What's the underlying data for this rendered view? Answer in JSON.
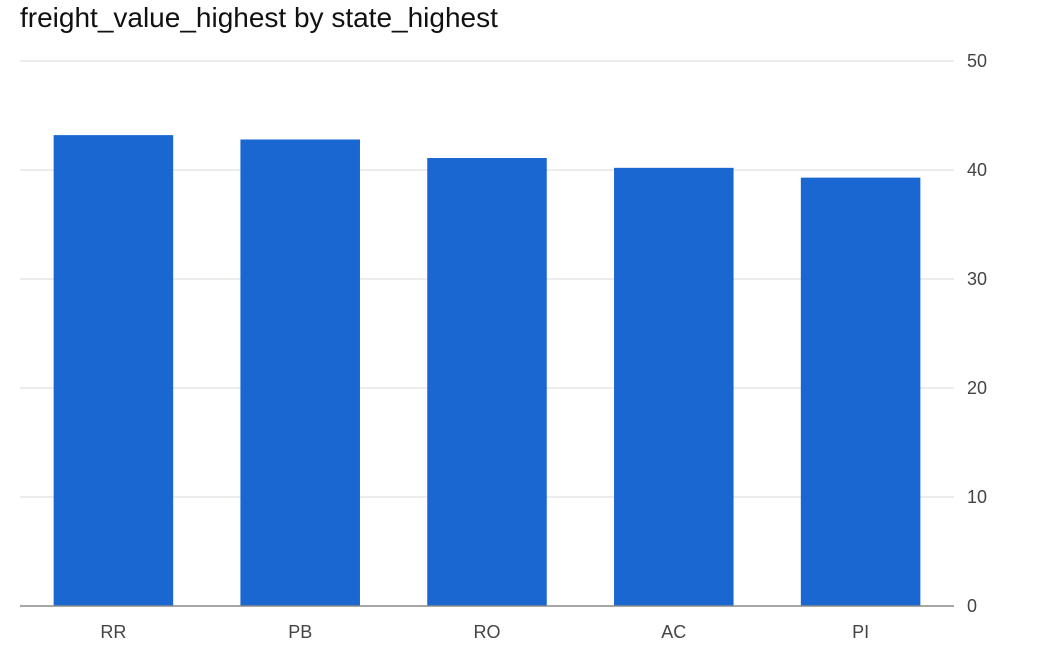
{
  "chart_data": {
    "type": "bar",
    "title": "freight_value_highest by state_highest",
    "xlabel": "",
    "ylabel": "",
    "categories": [
      "RR",
      "PB",
      "RO",
      "AC",
      "PI"
    ],
    "values": [
      43.2,
      42.8,
      41.1,
      40.2,
      39.3
    ],
    "ylim": [
      0,
      50
    ],
    "yticks": [
      0,
      10,
      20,
      30,
      40,
      50
    ],
    "y_axis_side": "right",
    "grid": true,
    "legend": "none",
    "bar_color": "#1a67d2",
    "grid_color": "#e6e6e6",
    "baseline_color": "#888888"
  }
}
